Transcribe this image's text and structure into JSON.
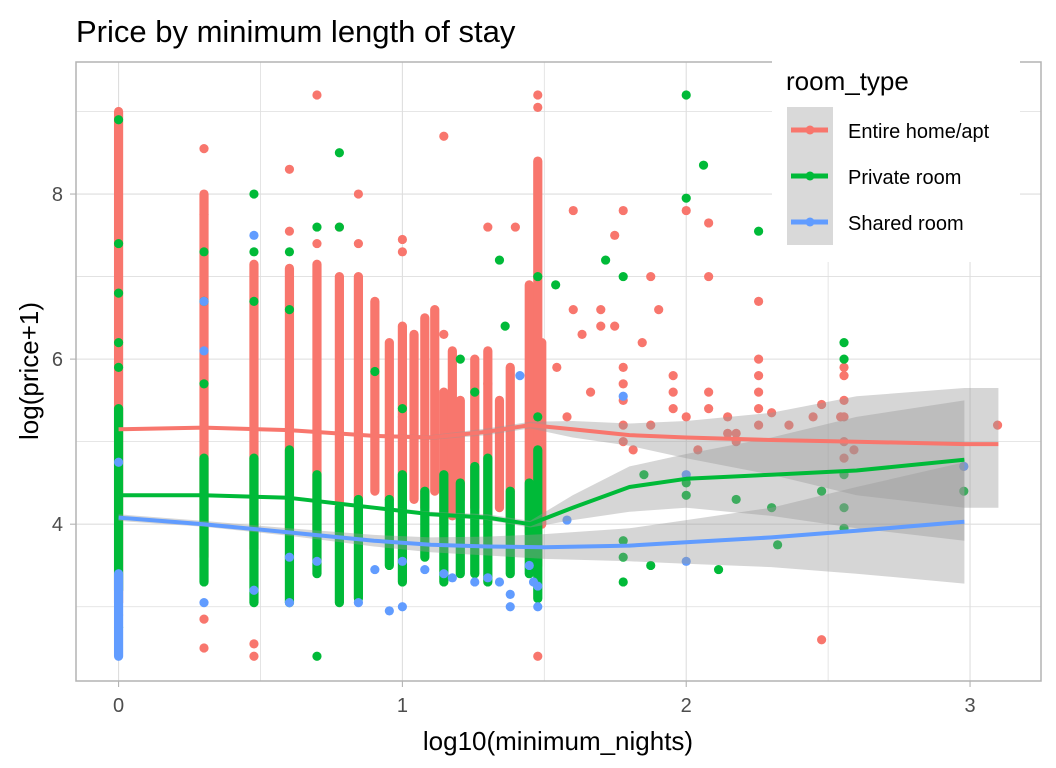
{
  "chart_data": {
    "type": "scatter",
    "title": "Price by minimum length of stay",
    "xlabel": "log10(minimum_nights)",
    "ylabel": "log(price+1)",
    "xlim": [
      -0.15,
      3.25
    ],
    "ylim": [
      2.1,
      9.6
    ],
    "x_ticks": [
      0,
      1,
      2,
      3
    ],
    "x_tick_labels": [
      "0",
      "1",
      "2",
      "3"
    ],
    "x_minor_ticks": [
      0.5,
      1.5,
      2.5
    ],
    "y_ticks": [
      4,
      6,
      8
    ],
    "y_tick_labels": [
      "4",
      "6",
      "8"
    ],
    "y_minor_ticks": [
      3,
      5,
      7,
      9
    ],
    "grid": true,
    "legend": {
      "title": "room_type",
      "position": "top-right",
      "entries": [
        "Entire home/apt",
        "Private room",
        "Shared room"
      ]
    },
    "colors": {
      "Entire home/apt": "#F8766D",
      "Private room": "#00BA38",
      "Shared room": "#619CFF",
      "ribbon": "#999999",
      "panel_border": "#b3b3b3",
      "grid": "#dedede"
    },
    "series": [
      {
        "name": "Entire home/apt",
        "columns": [
          {
            "x": 0,
            "ymin": 3.05,
            "ymax": 9.0
          },
          {
            "x": 0.301,
            "ymin": 3.6,
            "ymax": 8.0
          },
          {
            "x": 0.477,
            "ymin": 3.7,
            "ymax": 7.15
          },
          {
            "x": 0.602,
            "ymin": 3.9,
            "ymax": 7.1
          },
          {
            "x": 0.699,
            "ymin": 3.9,
            "ymax": 7.15
          },
          {
            "x": 0.778,
            "ymin": 4.0,
            "ymax": 7.0
          },
          {
            "x": 0.845,
            "ymin": 4.0,
            "ymax": 7.0
          },
          {
            "x": 0.903,
            "ymin": 4.4,
            "ymax": 6.7
          },
          {
            "x": 0.954,
            "ymin": 4.3,
            "ymax": 6.2
          },
          {
            "x": 1.0,
            "ymin": 4.2,
            "ymax": 6.4
          },
          {
            "x": 1.041,
            "ymin": 4.3,
            "ymax": 6.3
          },
          {
            "x": 1.079,
            "ymin": 4.2,
            "ymax": 6.5
          },
          {
            "x": 1.114,
            "ymin": 4.4,
            "ymax": 6.6
          },
          {
            "x": 1.146,
            "ymin": 4.0,
            "ymax": 5.6
          },
          {
            "x": 1.176,
            "ymin": 4.1,
            "ymax": 6.1
          },
          {
            "x": 1.204,
            "ymin": 4.3,
            "ymax": 5.5
          },
          {
            "x": 1.255,
            "ymin": 4.2,
            "ymax": 6.0
          },
          {
            "x": 1.301,
            "ymin": 4.0,
            "ymax": 6.1
          },
          {
            "x": 1.342,
            "ymin": 4.2,
            "ymax": 5.5
          },
          {
            "x": 1.38,
            "ymin": 4.0,
            "ymax": 5.9
          },
          {
            "x": 1.447,
            "ymin": 3.9,
            "ymax": 6.9
          },
          {
            "x": 1.462,
            "ymin": 3.8,
            "ymax": 6.7
          },
          {
            "x": 1.477,
            "ymin": 3.5,
            "ymax": 8.4
          },
          {
            "x": 1.491,
            "ymin": 4.0,
            "ymax": 6.2
          }
        ],
        "points": [
          [
            0,
            2.9
          ],
          [
            0.301,
            8.55
          ],
          [
            0.301,
            7.75
          ],
          [
            0.301,
            2.85
          ],
          [
            0.301,
            2.5
          ],
          [
            0.477,
            2.55
          ],
          [
            0.477,
            2.4
          ],
          [
            0.602,
            8.3
          ],
          [
            0.602,
            7.55
          ],
          [
            0.699,
            9.2
          ],
          [
            0.699,
            7.4
          ],
          [
            0.778,
            7.6
          ],
          [
            0.845,
            8.0
          ],
          [
            0.845,
            7.4
          ],
          [
            1.0,
            7.45
          ],
          [
            1.0,
            7.3
          ],
          [
            1.0,
            5.3
          ],
          [
            1.146,
            8.7
          ],
          [
            1.146,
            6.3
          ],
          [
            1.301,
            7.6
          ],
          [
            1.301,
            5.7
          ],
          [
            1.398,
            7.6
          ],
          [
            1.477,
            9.2
          ],
          [
            1.477,
            9.05
          ],
          [
            1.477,
            2.4
          ],
          [
            1.544,
            5.9
          ],
          [
            1.58,
            5.3
          ],
          [
            1.602,
            7.8
          ],
          [
            1.602,
            6.6
          ],
          [
            1.633,
            6.3
          ],
          [
            1.663,
            5.6
          ],
          [
            1.699,
            6.6
          ],
          [
            1.699,
            6.4
          ],
          [
            1.748,
            7.5
          ],
          [
            1.748,
            6.4
          ],
          [
            1.778,
            7.8
          ],
          [
            1.778,
            5.9
          ],
          [
            1.778,
            5.7
          ],
          [
            1.778,
            5.5
          ],
          [
            1.778,
            5.2
          ],
          [
            1.778,
            5.0
          ],
          [
            1.813,
            4.9
          ],
          [
            1.845,
            6.2
          ],
          [
            1.875,
            7.0
          ],
          [
            1.875,
            5.2
          ],
          [
            1.903,
            6.6
          ],
          [
            1.954,
            5.8
          ],
          [
            1.954,
            5.6
          ],
          [
            1.954,
            5.4
          ],
          [
            2.0,
            7.8
          ],
          [
            2.0,
            5.3
          ],
          [
            2.041,
            4.9
          ],
          [
            2.079,
            7.65
          ],
          [
            2.079,
            7.0
          ],
          [
            2.079,
            5.6
          ],
          [
            2.079,
            5.4
          ],
          [
            2.146,
            5.1
          ],
          [
            2.146,
            5.3
          ],
          [
            2.176,
            5.1
          ],
          [
            2.176,
            5.0
          ],
          [
            2.255,
            6.7
          ],
          [
            2.255,
            6.0
          ],
          [
            2.255,
            5.8
          ],
          [
            2.255,
            5.6
          ],
          [
            2.255,
            5.4
          ],
          [
            2.255,
            5.2
          ],
          [
            2.301,
            5.35
          ],
          [
            2.362,
            5.2
          ],
          [
            2.447,
            5.3
          ],
          [
            2.477,
            5.45
          ],
          [
            2.477,
            2.6
          ],
          [
            2.544,
            5.3
          ],
          [
            2.556,
            5.9
          ],
          [
            2.556,
            5.8
          ],
          [
            2.556,
            5.5
          ],
          [
            2.556,
            5.3
          ],
          [
            2.556,
            5.0
          ],
          [
            2.556,
            4.8
          ],
          [
            2.591,
            4.9
          ],
          [
            2.978,
            4.7
          ],
          [
            3.097,
            5.2
          ]
        ]
      },
      {
        "name": "Private room",
        "columns": [
          {
            "x": 0,
            "ymin": 3.2,
            "ymax": 5.4
          },
          {
            "x": 0.301,
            "ymin": 3.3,
            "ymax": 4.8
          },
          {
            "x": 0.477,
            "ymin": 3.05,
            "ymax": 4.8
          },
          {
            "x": 0.602,
            "ymin": 3.05,
            "ymax": 4.9
          },
          {
            "x": 0.699,
            "ymin": 3.4,
            "ymax": 4.6
          },
          {
            "x": 0.778,
            "ymin": 3.05,
            "ymax": 4.2
          },
          {
            "x": 0.845,
            "ymin": 3.1,
            "ymax": 4.3
          },
          {
            "x": 0.954,
            "ymin": 3.5,
            "ymax": 4.3
          },
          {
            "x": 1.0,
            "ymin": 3.3,
            "ymax": 4.6
          },
          {
            "x": 1.079,
            "ymin": 3.6,
            "ymax": 4.4
          },
          {
            "x": 1.146,
            "ymin": 3.3,
            "ymax": 4.6
          },
          {
            "x": 1.204,
            "ymin": 3.4,
            "ymax": 4.5
          },
          {
            "x": 1.255,
            "ymin": 3.4,
            "ymax": 4.7
          },
          {
            "x": 1.301,
            "ymin": 3.3,
            "ymax": 4.8
          },
          {
            "x": 1.38,
            "ymin": 3.4,
            "ymax": 4.4
          },
          {
            "x": 1.447,
            "ymin": 3.4,
            "ymax": 4.5
          },
          {
            "x": 1.477,
            "ymin": 3.1,
            "ymax": 4.9
          }
        ],
        "points": [
          [
            0,
            8.9
          ],
          [
            0,
            7.4
          ],
          [
            0,
            6.8
          ],
          [
            0,
            6.2
          ],
          [
            0,
            5.9
          ],
          [
            0,
            2.75
          ],
          [
            0.301,
            7.3
          ],
          [
            0.301,
            6.7
          ],
          [
            0.301,
            5.7
          ],
          [
            0.477,
            8.0
          ],
          [
            0.477,
            7.3
          ],
          [
            0.477,
            6.7
          ],
          [
            0.602,
            7.3
          ],
          [
            0.602,
            6.6
          ],
          [
            0.699,
            7.6
          ],
          [
            0.699,
            2.4
          ],
          [
            0.778,
            8.5
          ],
          [
            0.778,
            7.6
          ],
          [
            0.903,
            5.85
          ],
          [
            1.0,
            5.4
          ],
          [
            1.204,
            6.0
          ],
          [
            1.255,
            5.6
          ],
          [
            1.342,
            7.2
          ],
          [
            1.362,
            6.4
          ],
          [
            1.477,
            7.0
          ],
          [
            1.477,
            5.3
          ],
          [
            1.54,
            6.9
          ],
          [
            1.716,
            7.2
          ],
          [
            1.778,
            7.0
          ],
          [
            1.778,
            3.8
          ],
          [
            1.778,
            3.6
          ],
          [
            1.778,
            3.3
          ],
          [
            1.851,
            4.6
          ],
          [
            1.875,
            3.5
          ],
          [
            2.0,
            9.2
          ],
          [
            2.0,
            7.95
          ],
          [
            2.0,
            4.5
          ],
          [
            2.0,
            4.35
          ],
          [
            2.061,
            8.35
          ],
          [
            2.114,
            3.45
          ],
          [
            2.176,
            4.3
          ],
          [
            2.255,
            7.55
          ],
          [
            2.301,
            4.2
          ],
          [
            2.322,
            3.75
          ],
          [
            2.477,
            4.4
          ],
          [
            2.556,
            6.2
          ],
          [
            2.556,
            6.0
          ],
          [
            2.556,
            4.6
          ],
          [
            2.556,
            4.2
          ],
          [
            2.556,
            3.95
          ],
          [
            2.978,
            4.4
          ]
        ]
      },
      {
        "name": "Shared room",
        "columns": [
          {
            "x": 0,
            "ymin": 2.4,
            "ymax": 3.4
          }
        ],
        "points": [
          [
            0,
            4.75
          ],
          [
            0.301,
            6.7
          ],
          [
            0.301,
            6.1
          ],
          [
            0.301,
            3.05
          ],
          [
            0.477,
            7.5
          ],
          [
            0.477,
            3.2
          ],
          [
            0.602,
            3.6
          ],
          [
            0.602,
            3.05
          ],
          [
            0.699,
            3.55
          ],
          [
            0.845,
            3.05
          ],
          [
            0.903,
            3.45
          ],
          [
            0.954,
            2.95
          ],
          [
            1.0,
            3.55
          ],
          [
            1.0,
            3.0
          ],
          [
            1.079,
            3.45
          ],
          [
            1.146,
            3.4
          ],
          [
            1.176,
            3.35
          ],
          [
            1.255,
            3.3
          ],
          [
            1.301,
            3.35
          ],
          [
            1.342,
            3.3
          ],
          [
            1.38,
            3.0
          ],
          [
            1.38,
            3.15
          ],
          [
            1.414,
            5.8
          ],
          [
            1.447,
            3.5
          ],
          [
            1.462,
            3.3
          ],
          [
            1.477,
            3.0
          ],
          [
            1.477,
            3.25
          ],
          [
            1.58,
            4.05
          ],
          [
            1.778,
            5.55
          ],
          [
            2.0,
            3.55
          ],
          [
            2.0,
            4.6
          ],
          [
            2.978,
            4.7
          ]
        ]
      }
    ],
    "smooth": [
      {
        "name": "Entire home/apt",
        "x": [
          0,
          0.3,
          0.6,
          0.9,
          1.1,
          1.3,
          1.45,
          1.6,
          1.8,
          2.0,
          2.3,
          2.6,
          2.98,
          3.1
        ],
        "y": [
          5.15,
          5.17,
          5.14,
          5.07,
          5.05,
          5.12,
          5.2,
          5.15,
          5.08,
          5.05,
          5.02,
          5.0,
          4.97,
          4.97
        ],
        "lower": [
          5.13,
          5.16,
          5.13,
          5.05,
          5.02,
          5.08,
          5.16,
          5.05,
          4.95,
          4.8,
          4.6,
          4.35,
          4.2,
          4.2
        ],
        "upper": [
          5.17,
          5.18,
          5.15,
          5.09,
          5.08,
          5.16,
          5.24,
          5.25,
          5.22,
          5.25,
          5.35,
          5.55,
          5.65,
          5.65
        ]
      },
      {
        "name": "Private room",
        "x": [
          0,
          0.3,
          0.6,
          0.9,
          1.1,
          1.3,
          1.45,
          1.6,
          1.8,
          2.0,
          2.3,
          2.6,
          2.98
        ],
        "y": [
          4.35,
          4.35,
          4.32,
          4.2,
          4.12,
          4.08,
          4.0,
          4.2,
          4.45,
          4.55,
          4.6,
          4.65,
          4.78
        ],
        "lower": [
          4.33,
          4.34,
          4.3,
          4.18,
          4.1,
          4.05,
          3.96,
          4.05,
          4.15,
          4.2,
          4.1,
          3.95,
          3.8
        ],
        "upper": [
          4.37,
          4.36,
          4.34,
          4.22,
          4.15,
          4.12,
          4.04,
          4.35,
          4.7,
          4.85,
          5.05,
          5.3,
          5.5
        ]
      },
      {
        "name": "Shared room",
        "x": [
          0,
          0.3,
          0.6,
          0.9,
          1.1,
          1.3,
          1.5,
          1.8,
          2.0,
          2.3,
          2.6,
          2.98
        ],
        "y": [
          4.08,
          4.0,
          3.9,
          3.8,
          3.75,
          3.73,
          3.72,
          3.74,
          3.78,
          3.84,
          3.92,
          4.03
        ],
        "lower": [
          4.04,
          3.97,
          3.86,
          3.73,
          3.66,
          3.62,
          3.58,
          3.55,
          3.52,
          3.48,
          3.4,
          3.28
        ],
        "upper": [
          4.12,
          4.04,
          3.95,
          3.87,
          3.84,
          3.85,
          3.88,
          3.95,
          4.05,
          4.2,
          4.45,
          4.75
        ]
      }
    ]
  }
}
